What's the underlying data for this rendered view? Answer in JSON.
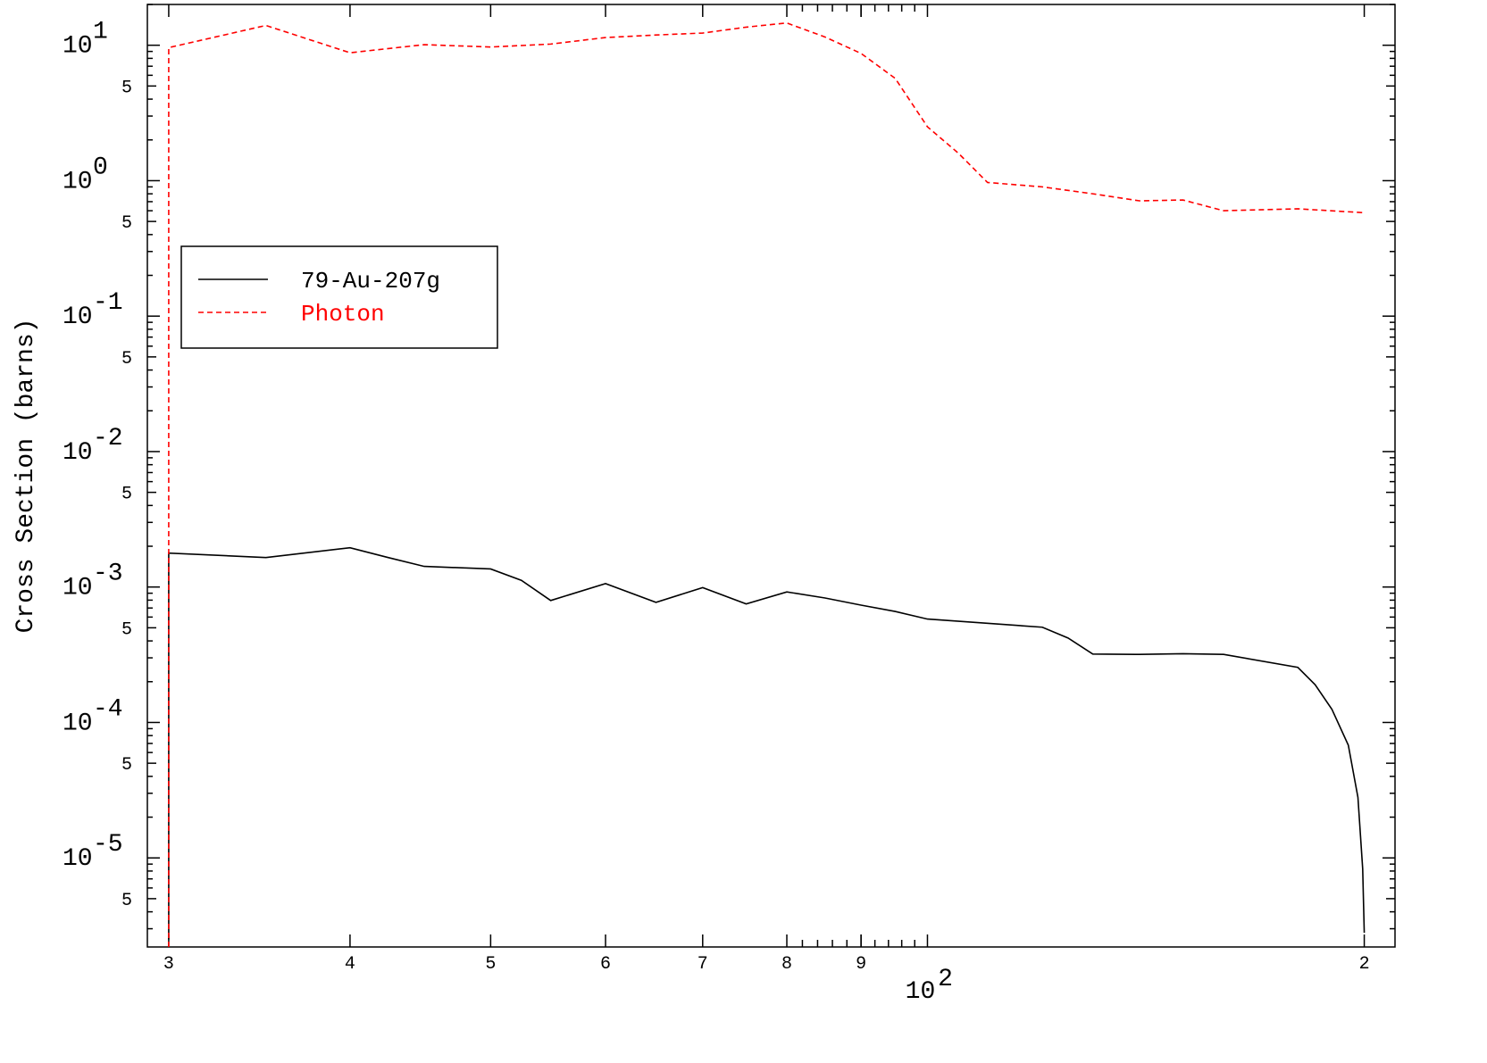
{
  "chart_data": {
    "type": "line",
    "title": "",
    "xlabel": "",
    "ylabel": "Cross Section (barns)",
    "x_scale": "log",
    "y_scale": "log",
    "xlim": [
      29,
      210
    ],
    "ylim": [
      2.2e-06,
      20
    ],
    "x_ticks": {
      "labeled": [
        {
          "value": 30,
          "label": "3"
        },
        {
          "value": 40,
          "label": "4"
        },
        {
          "value": 50,
          "label": "5"
        },
        {
          "value": 60,
          "label": "6"
        },
        {
          "value": 70,
          "label": "7"
        },
        {
          "value": 80,
          "label": "8"
        },
        {
          "value": 90,
          "label": "9"
        },
        {
          "value": 200,
          "label": "2"
        }
      ],
      "decade_label": {
        "value": 100,
        "base": "10",
        "exp": "2"
      }
    },
    "y_ticks": {
      "decades": [
        {
          "value": 10,
          "base": "10",
          "exp": "1"
        },
        {
          "value": 1,
          "base": "10",
          "exp": "0"
        },
        {
          "value": 0.1,
          "base": "10",
          "exp": "-1"
        },
        {
          "value": 0.01,
          "base": "10",
          "exp": "-2"
        },
        {
          "value": 0.001,
          "base": "10",
          "exp": "-3"
        },
        {
          "value": 0.0001,
          "base": "10",
          "exp": "-4"
        },
        {
          "value": 1e-05,
          "base": "10",
          "exp": "-5"
        }
      ],
      "fives": [
        {
          "value": 5,
          "label": "5"
        },
        {
          "value": 0.5,
          "label": "5"
        },
        {
          "value": 0.05,
          "label": "5"
        },
        {
          "value": 0.005,
          "label": "5"
        },
        {
          "value": 0.0005,
          "label": "5"
        },
        {
          "value": 5e-05,
          "label": "5"
        },
        {
          "value": 5e-06,
          "label": "5"
        }
      ]
    },
    "legend": {
      "position": "upper-left",
      "framed": true
    },
    "series": [
      {
        "name": "79-Au-207g",
        "color": "#000000",
        "dash": "solid",
        "points": [
          [
            30,
            2.5e-06
          ],
          [
            30,
            0.00178
          ],
          [
            35,
            0.00165
          ],
          [
            40,
            0.00195
          ],
          [
            42.5,
            0.00165
          ],
          [
            45,
            0.00142
          ],
          [
            50,
            0.00136
          ],
          [
            52.5,
            0.00112
          ],
          [
            55,
            0.000795
          ],
          [
            60,
            0.00106
          ],
          [
            65,
            0.00077
          ],
          [
            70,
            0.00099
          ],
          [
            75,
            0.00075
          ],
          [
            80,
            0.00092
          ],
          [
            85,
            0.00083
          ],
          [
            90,
            0.000735
          ],
          [
            95,
            0.00066
          ],
          [
            100,
            0.00058
          ],
          [
            120,
            0.000505
          ],
          [
            125,
            0.00042
          ],
          [
            130,
            0.00032
          ],
          [
            140,
            0.000318
          ],
          [
            150,
            0.000322
          ],
          [
            160,
            0.000318
          ],
          [
            180,
            0.000255
          ],
          [
            185,
            0.00019
          ],
          [
            190,
            0.000125
          ],
          [
            195,
            6.8e-05
          ],
          [
            198,
            2.8e-05
          ],
          [
            199.5,
            8.3e-06
          ],
          [
            200,
            2.8e-06
          ]
        ]
      },
      {
        "name": "Photon",
        "color": "#ff0000",
        "dash": "dashed",
        "points": [
          [
            30,
            2.2e-06
          ],
          [
            30,
            9.6
          ],
          [
            35,
            14
          ],
          [
            40,
            8.8
          ],
          [
            45,
            10.1
          ],
          [
            50,
            9.7
          ],
          [
            55,
            10.2
          ],
          [
            60,
            11.4
          ],
          [
            65,
            11.9
          ],
          [
            70,
            12.3
          ],
          [
            75,
            13.6
          ],
          [
            80,
            14.6
          ],
          [
            85,
            11.5
          ],
          [
            90,
            8.7
          ],
          [
            95,
            5.7
          ],
          [
            100,
            2.5
          ],
          [
            105,
            1.6
          ],
          [
            110,
            0.97
          ],
          [
            120,
            0.9
          ],
          [
            130,
            0.8
          ],
          [
            140,
            0.71
          ],
          [
            150,
            0.72
          ],
          [
            160,
            0.6
          ],
          [
            180,
            0.62
          ],
          [
            200,
            0.58
          ]
        ]
      }
    ]
  }
}
